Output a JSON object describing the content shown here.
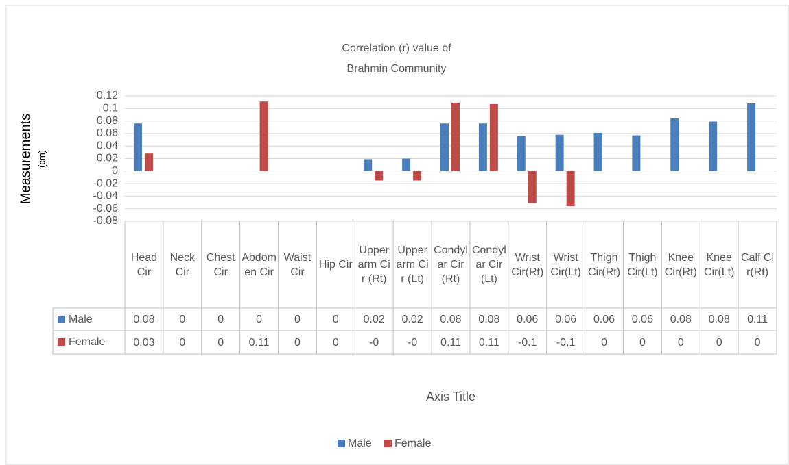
{
  "chart_data": {
    "type": "bar",
    "title": [
      "Correlation (r) value of",
      "Brahmin Community"
    ],
    "y_label": "Measurements",
    "y_label_unit": "(cm)",
    "x_label": "Axis Title",
    "categories": [
      "Head Cir",
      "Neck Cir",
      "Chest Cir",
      "Abdomen Cir",
      "Waist Cir",
      "Hip Cir",
      "Upper arm Cir (Rt)",
      "Upper arm Cir (Lt)",
      "Condylar Cir(Rt)",
      "Condylar Cir(Lt)",
      "Wrist Cir(Rt)",
      "Wrist Cir(Lt)",
      "Thigh Cir(Rt)",
      "Thigh Cir(Lt)",
      "Knee Cir(Rt)",
      "Knee Cir(Lt)",
      "Calf Cir(Rt)"
    ],
    "series": [
      {
        "name": "Male",
        "color": "#4a7ebb",
        "values": [
          0.076,
          0,
          0,
          0,
          0,
          0,
          0.019,
          0.02,
          0.076,
          0.076,
          0.056,
          0.058,
          0.061,
          0.057,
          0.084,
          0.079,
          0.108
        ],
        "value_labels": [
          "0.08",
          "0",
          "0",
          "0",
          "0",
          "0",
          "0.02",
          "0.02",
          "0.08",
          "0.08",
          "0.06",
          "0.06",
          "0.06",
          "0.06",
          "0.08",
          "0.08",
          "0.11"
        ]
      },
      {
        "name": "Female",
        "color": "#be4b48",
        "values": [
          0.028,
          0,
          0,
          0.111,
          0,
          0,
          -0.015,
          -0.015,
          0.109,
          0.107,
          -0.051,
          -0.056,
          0,
          0,
          0,
          0,
          0
        ],
        "value_labels": [
          "0.03",
          "0",
          "0",
          "0.11",
          "0",
          "0",
          "-0",
          "-0",
          "0.11",
          "0.11",
          "-0.1",
          "-0.1",
          "0",
          "0",
          "0",
          "0",
          "0"
        ]
      }
    ],
    "ylim": [
      -0.08,
      0.12
    ],
    "yticks": [
      0.12,
      0.1,
      0.08,
      0.06,
      0.04,
      0.02,
      0,
      -0.02,
      -0.04,
      -0.06,
      -0.08
    ],
    "grid": true,
    "legend": "bottom",
    "data_table": true
  }
}
